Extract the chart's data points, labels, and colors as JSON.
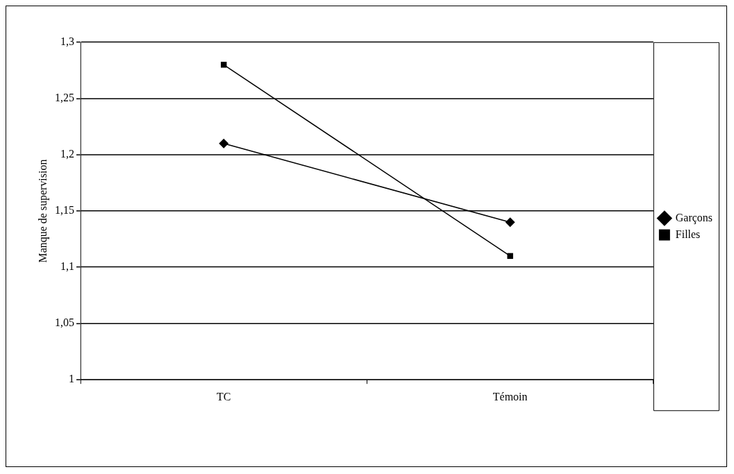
{
  "chart_data": {
    "type": "line",
    "ylabel": "Manque de supervision",
    "categories": [
      "TC",
      "Témoin"
    ],
    "series": [
      {
        "name": "Garçons",
        "color": "#000000",
        "values": [
          1.21,
          1.14
        ],
        "marker": "diamond"
      },
      {
        "name": "Filles",
        "color": "#000000",
        "values": [
          1.28,
          1.11
        ],
        "marker": "square"
      }
    ],
    "ylim": [
      1,
      1.3
    ],
    "yticks": [
      1,
      {
        "value": 1.05,
        "label": "1,05"
      },
      {
        "value": 1.1,
        "label": "1,1"
      },
      {
        "value": 1.15,
        "label": "1,15"
      },
      {
        "value": 1.2,
        "label": "1,2"
      },
      {
        "value": 1.25,
        "label": "1,25"
      },
      {
        "value": 1.3,
        "label": "1,3"
      }
    ],
    "grid": "y",
    "legend": "right",
    "line_style": "solid"
  }
}
